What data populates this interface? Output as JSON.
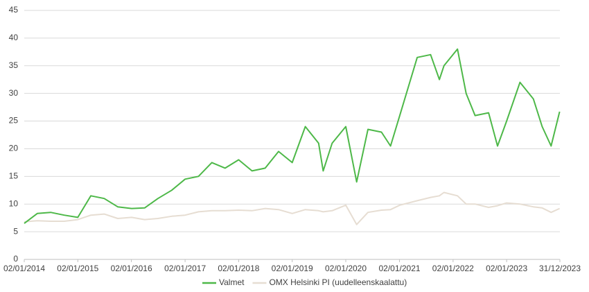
{
  "chart_data": {
    "type": "line",
    "x": [
      "02/01/2014",
      "01/04/2014",
      "01/07/2014",
      "01/10/2014",
      "02/01/2015",
      "01/04/2015",
      "01/07/2015",
      "01/10/2015",
      "04/01/2016",
      "01/04/2016",
      "01/07/2016",
      "03/10/2016",
      "02/01/2017",
      "03/04/2017",
      "03/07/2017",
      "02/10/2017",
      "02/01/2018",
      "03/04/2018",
      "02/07/2018",
      "01/10/2018",
      "02/01/2019",
      "01/04/2019",
      "01/07/2019",
      "01/08/2019",
      "01/10/2019",
      "02/01/2020",
      "16/03/2020",
      "01/06/2020",
      "01/09/2020",
      "02/11/2020",
      "04/01/2021",
      "03/05/2021",
      "02/08/2021",
      "01/10/2021",
      "01/11/2021",
      "01/02/2022",
      "01/04/2022",
      "01/06/2022",
      "01/09/2022",
      "01/11/2022",
      "02/01/2023",
      "03/04/2023",
      "03/07/2023",
      "01/09/2023",
      "01/11/2023",
      "29/12/2023"
    ],
    "series": [
      {
        "name": "Valmet",
        "color": "#4db848",
        "values": [
          6.5,
          8.3,
          8.5,
          8.0,
          7.6,
          11.5,
          11.0,
          9.5,
          9.2,
          9.3,
          11.0,
          12.5,
          14.5,
          15.0,
          17.5,
          16.5,
          18.0,
          16.0,
          16.5,
          19.5,
          17.5,
          24.0,
          21.0,
          16.0,
          21.0,
          24.0,
          14.0,
          23.5,
          23.0,
          20.5,
          26.0,
          36.5,
          37.0,
          32.5,
          35.0,
          38.0,
          30.0,
          26.0,
          26.5,
          20.5,
          25.0,
          32.0,
          29.0,
          24.0,
          20.5,
          26.7
        ]
      },
      {
        "name": "OMX Helsinki PI (uudelleenskaalattu)",
        "color": "#e6ddd2",
        "values": [
          6.8,
          7.0,
          6.9,
          6.9,
          7.2,
          8.0,
          8.2,
          7.4,
          7.6,
          7.2,
          7.4,
          7.8,
          8.0,
          8.6,
          8.8,
          8.8,
          8.9,
          8.8,
          9.2,
          9.0,
          8.3,
          9.0,
          8.8,
          8.6,
          8.8,
          9.8,
          6.3,
          8.5,
          8.9,
          9.0,
          9.8,
          10.6,
          11.2,
          11.5,
          12.1,
          11.5,
          10.0,
          10.0,
          9.4,
          9.7,
          10.2,
          10.0,
          9.5,
          9.3,
          8.5,
          9.2
        ]
      }
    ],
    "xlim": [
      "02/01/2014",
      "31/12/2023"
    ],
    "xticks": [
      "02/01/2014",
      "02/01/2015",
      "02/01/2016",
      "02/01/2017",
      "02/01/2018",
      "02/01/2019",
      "02/01/2020",
      "02/01/2021",
      "02/01/2022",
      "02/01/2023",
      "31/12/2023"
    ],
    "ylim": [
      0,
      45
    ],
    "yticks": [
      0,
      5,
      10,
      15,
      20,
      25,
      30,
      35,
      40,
      45
    ],
    "grid": true,
    "legend": "bottom"
  }
}
